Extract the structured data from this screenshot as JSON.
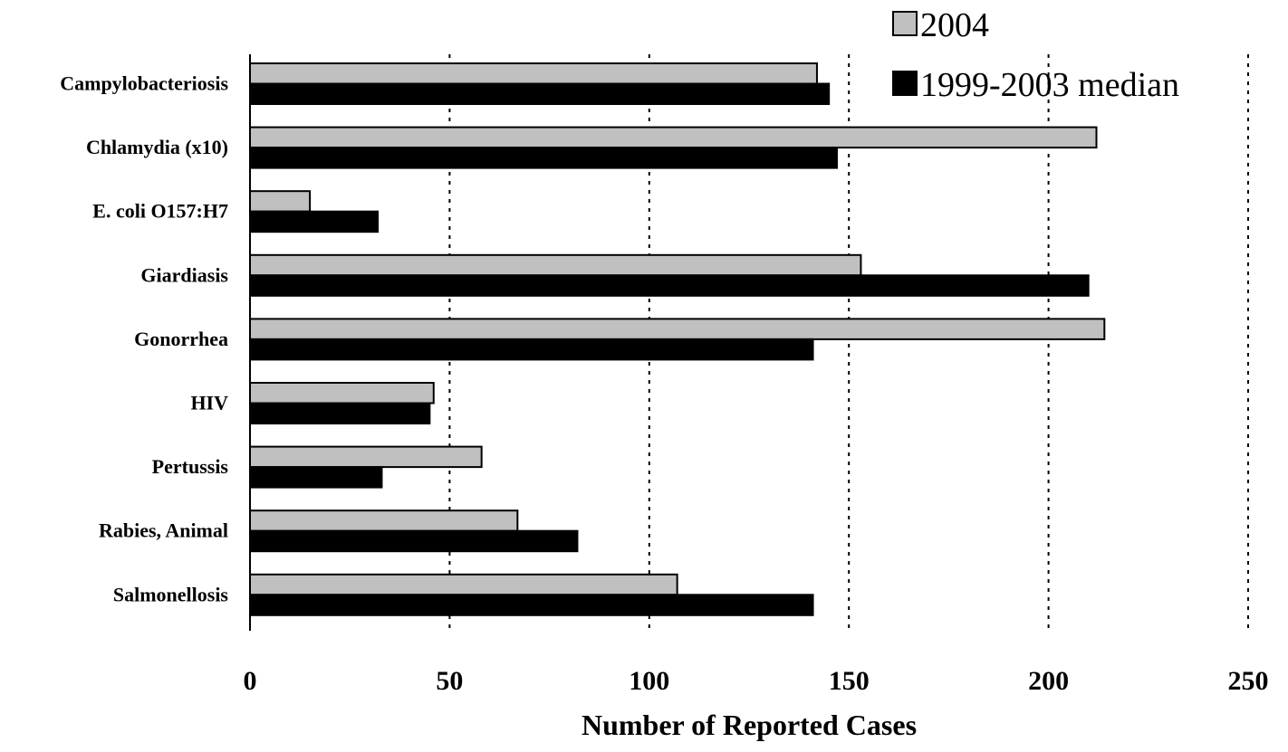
{
  "chart_data": {
    "type": "bar",
    "orientation": "horizontal",
    "title": "",
    "xlabel": "Number of Reported Cases",
    "ylabel": "",
    "xlim": [
      0,
      250
    ],
    "x_ticks": [
      0,
      50,
      100,
      150,
      200,
      250
    ],
    "grid": "vertical dotted",
    "legend_position": "top-right",
    "categories": [
      "Campylobacteriosis",
      "Chlamydia (x10)",
      "E. coli O157:H7",
      "Giardiasis",
      "Gonorrhea",
      "HIV",
      "Pertussis",
      "Rabies, Animal",
      "Salmonellosis"
    ],
    "series": [
      {
        "name": "2004",
        "color": "#c0c0c0",
        "values": [
          142,
          212,
          15,
          153,
          214,
          46,
          58,
          67,
          107
        ]
      },
      {
        "name": "1999-2003 median",
        "color": "#000000",
        "values": [
          145,
          147,
          32,
          210,
          141,
          45,
          33,
          82,
          141
        ]
      }
    ]
  }
}
